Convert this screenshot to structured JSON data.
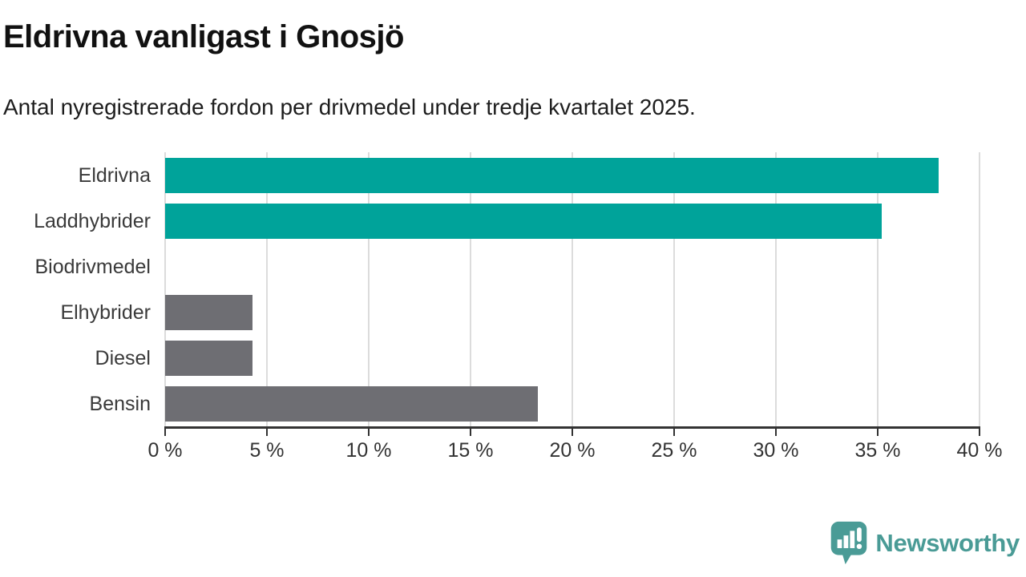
{
  "header": {
    "title": "Eldrivna vanligast i Gnosjö",
    "subtitle": "Antal nyregistrerade fordon per drivmedel under tredje kvartalet 2025."
  },
  "chart_data": {
    "type": "bar",
    "orientation": "horizontal",
    "title": "Eldrivna vanligast i Gnosjö",
    "subtitle": "Antal nyregistrerade fordon per drivmedel under tredje kvartalet 2025.",
    "categories": [
      "Eldrivna",
      "Laddhybrider",
      "Biodrivmedel",
      "Elhybrider",
      "Diesel",
      "Bensin"
    ],
    "values": [
      38.0,
      35.2,
      0,
      4.3,
      4.3,
      18.3
    ],
    "unit": "%",
    "bar_colors": [
      "#00a39a",
      "#00a39a",
      "#6e6e73",
      "#6e6e73",
      "#6e6e73",
      "#6e6e73"
    ],
    "xlabel": "",
    "ylabel": "",
    "xlim": [
      0,
      40
    ],
    "x_ticks": [
      0,
      5,
      10,
      15,
      20,
      25,
      30,
      35,
      40
    ],
    "x_tick_labels": [
      "0 %",
      "5 %",
      "10 %",
      "15 %",
      "20 %",
      "25 %",
      "30 %",
      "35 %",
      "40 %"
    ],
    "grid": "vertical-gridlines-on",
    "legend": "none"
  },
  "footer": {
    "brand": "Newsworthy"
  },
  "colors": {
    "accent_teal": "#00a39a",
    "bar_gray": "#6e6e73",
    "brand_teal": "#4a9b96",
    "gridline": "#dcdcdc",
    "axis": "#333333",
    "title_text": "#111111"
  }
}
